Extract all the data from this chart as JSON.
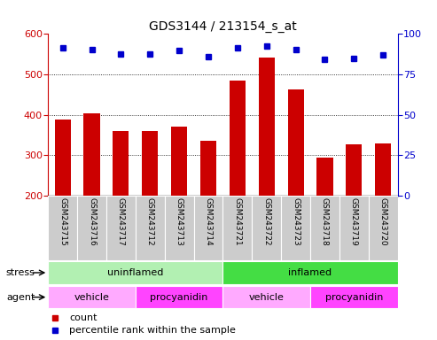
{
  "title": "GDS3144 / 213154_s_at",
  "samples": [
    "GSM243715",
    "GSM243716",
    "GSM243717",
    "GSM243712",
    "GSM243713",
    "GSM243714",
    "GSM243721",
    "GSM243722",
    "GSM243723",
    "GSM243718",
    "GSM243719",
    "GSM243720"
  ],
  "counts": [
    388,
    405,
    360,
    360,
    372,
    336,
    484,
    542,
    462,
    294,
    328,
    330
  ],
  "percentile_yvals": [
    565,
    562,
    550,
    550,
    560,
    545,
    565,
    570,
    562,
    537,
    540,
    548
  ],
  "ylim_left": [
    200,
    600
  ],
  "ylim_right": [
    0,
    100
  ],
  "yticks_left": [
    200,
    300,
    400,
    500,
    600
  ],
  "yticks_right": [
    0,
    25,
    50,
    75,
    100
  ],
  "grid_yticks": [
    300,
    400,
    500
  ],
  "stress_groups": [
    {
      "label": "uninflamed",
      "start": 0,
      "end": 6,
      "color": "#b2f0b2"
    },
    {
      "label": "inflamed",
      "start": 6,
      "end": 12,
      "color": "#44dd44"
    }
  ],
  "agent_groups": [
    {
      "label": "vehicle",
      "start": 0,
      "end": 3,
      "color": "#ffaaff"
    },
    {
      "label": "procyanidin",
      "start": 3,
      "end": 6,
      "color": "#ff44ff"
    },
    {
      "label": "vehicle",
      "start": 6,
      "end": 9,
      "color": "#ffaaff"
    },
    {
      "label": "procyanidin",
      "start": 9,
      "end": 12,
      "color": "#ff44ff"
    }
  ],
  "bar_color": "#cc0000",
  "dot_color": "#0000cc",
  "bar_width": 0.55,
  "left_tick_color": "#cc0000",
  "right_tick_color": "#0000cc",
  "legend_red_label": "count",
  "legend_blue_label": "percentile rank within the sample",
  "stress_label": "stress",
  "agent_label": "agent",
  "xlabel_cell_color": "#cccccc",
  "xlabel_fontsize": 6.5,
  "title_fontsize": 10,
  "band_fontsize": 8,
  "legend_fontsize": 8,
  "tick_fontsize": 8
}
